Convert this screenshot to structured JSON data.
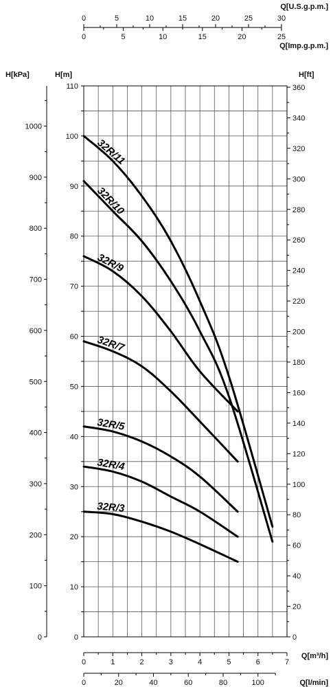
{
  "chart_data": {
    "type": "line",
    "x_unit": "Q[m³/h]",
    "xlim": [
      0,
      7
    ],
    "ylim": [
      0,
      110
    ],
    "x_ticks": [
      "0",
      "1",
      "2",
      "3",
      "4",
      "5",
      "6",
      "7"
    ],
    "axes": {
      "left_primary": {
        "label": "H[m]",
        "ticks": [
          "0",
          "10",
          "20",
          "30",
          "40",
          "50",
          "60",
          "70",
          "80",
          "90",
          "100",
          "110"
        ]
      },
      "left_secondary": {
        "label": "H[kPa]",
        "ticks": [
          "0",
          "100",
          "200",
          "300",
          "400",
          "500",
          "600",
          "700",
          "800",
          "900",
          "1000"
        ]
      },
      "right": {
        "label": "H[ft]",
        "ticks": [
          "0",
          "20",
          "40",
          "60",
          "80",
          "100",
          "120",
          "140",
          "160",
          "180",
          "200",
          "220",
          "240",
          "260",
          "280",
          "300",
          "320",
          "340",
          "360"
        ]
      },
      "top_usgpm": {
        "label": "Q[U.S.g.p.m.]",
        "ticks": [
          "0",
          "5",
          "10",
          "15",
          "20",
          "25",
          "30"
        ]
      },
      "top_impgpm": {
        "label": "Q[Imp.g.p.m.]",
        "ticks": [
          "0",
          "5",
          "10",
          "15",
          "20",
          "25"
        ]
      },
      "bottom_m3h": {
        "label": "Q[m³/h]",
        "ticks": [
          "0",
          "1",
          "2",
          "3",
          "4",
          "5",
          "6",
          "7"
        ]
      },
      "bottom_lmin": {
        "label": "Q[l/min]",
        "ticks": [
          "0",
          "20",
          "40",
          "60",
          "80",
          "100"
        ]
      }
    },
    "series": [
      {
        "name": "32R/11",
        "x": [
          0,
          1,
          2,
          3,
          4,
          5,
          6.5
        ],
        "y": [
          100,
          95,
          88,
          79,
          67,
          52,
          22
        ]
      },
      {
        "name": "32R/10",
        "x": [
          0,
          1,
          2,
          3,
          4,
          5,
          6.5
        ],
        "y": [
          91,
          85,
          79,
          71,
          61,
          48,
          19
        ]
      },
      {
        "name": "32R/9",
        "x": [
          0,
          1,
          2,
          3,
          4,
          5.3
        ],
        "y": [
          76,
          73,
          68,
          61,
          53,
          45
        ]
      },
      {
        "name": "32R/7",
        "x": [
          0,
          1,
          2,
          3,
          4,
          5.3
        ],
        "y": [
          59,
          57,
          54,
          49,
          43,
          35
        ]
      },
      {
        "name": "32R/5",
        "x": [
          0,
          1,
          2,
          3,
          4,
          5.3
        ],
        "y": [
          42,
          41,
          39,
          36,
          32,
          25
        ]
      },
      {
        "name": "32R/4",
        "x": [
          0,
          1,
          2,
          3,
          4,
          5.3
        ],
        "y": [
          34,
          33,
          31,
          28,
          25,
          20
        ]
      },
      {
        "name": "32R/3",
        "x": [
          0,
          1,
          2,
          3,
          4,
          5.3
        ],
        "y": [
          25,
          24.5,
          23,
          21,
          18.5,
          15
        ]
      }
    ]
  }
}
